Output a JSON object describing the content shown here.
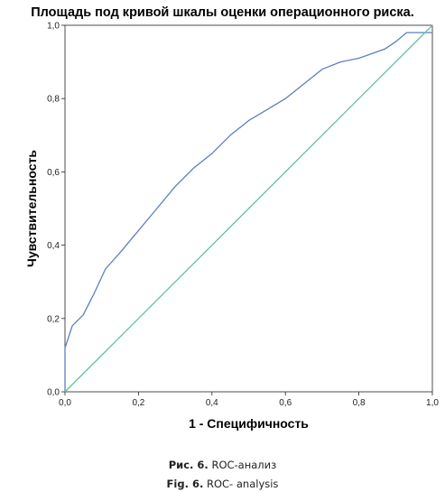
{
  "chart_data": {
    "type": "line",
    "title": "Площадь под кривой шкалы оценки операционного риска.",
    "xlabel": "1 - Специфичность",
    "ylabel": "Чувствительность",
    "xlim": [
      0,
      1
    ],
    "ylim": [
      0,
      1
    ],
    "x_ticks": [
      "0,0",
      "0,2",
      "0,4",
      "0,6",
      "0,8",
      "1,0"
    ],
    "y_ticks": [
      "0,0",
      "0,2",
      "0,4",
      "0,6",
      "0,8",
      "1,0"
    ],
    "grid": false,
    "legend": "none",
    "series": [
      {
        "color": "#5b7fc2",
        "x": [
          0,
          0,
          0.01,
          0.02,
          0.05,
          0.08,
          0.11,
          0.15,
          0.2,
          0.25,
          0.3,
          0.35,
          0.4,
          0.45,
          0.5,
          0.55,
          0.6,
          0.65,
          0.7,
          0.75,
          0.8,
          0.87,
          0.9,
          0.93,
          0.95,
          1.0
        ],
        "y": [
          0,
          0.12,
          0.15,
          0.18,
          0.21,
          0.27,
          0.335,
          0.38,
          0.44,
          0.5,
          0.56,
          0.61,
          0.65,
          0.7,
          0.74,
          0.77,
          0.8,
          0.84,
          0.88,
          0.9,
          0.91,
          0.935,
          0.955,
          0.98,
          0.98,
          0.98
        ]
      },
      {
        "color": "#5fc49a",
        "x": [
          0,
          1
        ],
        "y": [
          0,
          1
        ]
      }
    ]
  },
  "caption": {
    "ru_prefix": "Рис. 6.",
    "ru_text": "ROC-анализ",
    "en_prefix": "Fig. 6.",
    "en_text": "ROC- analysis"
  }
}
